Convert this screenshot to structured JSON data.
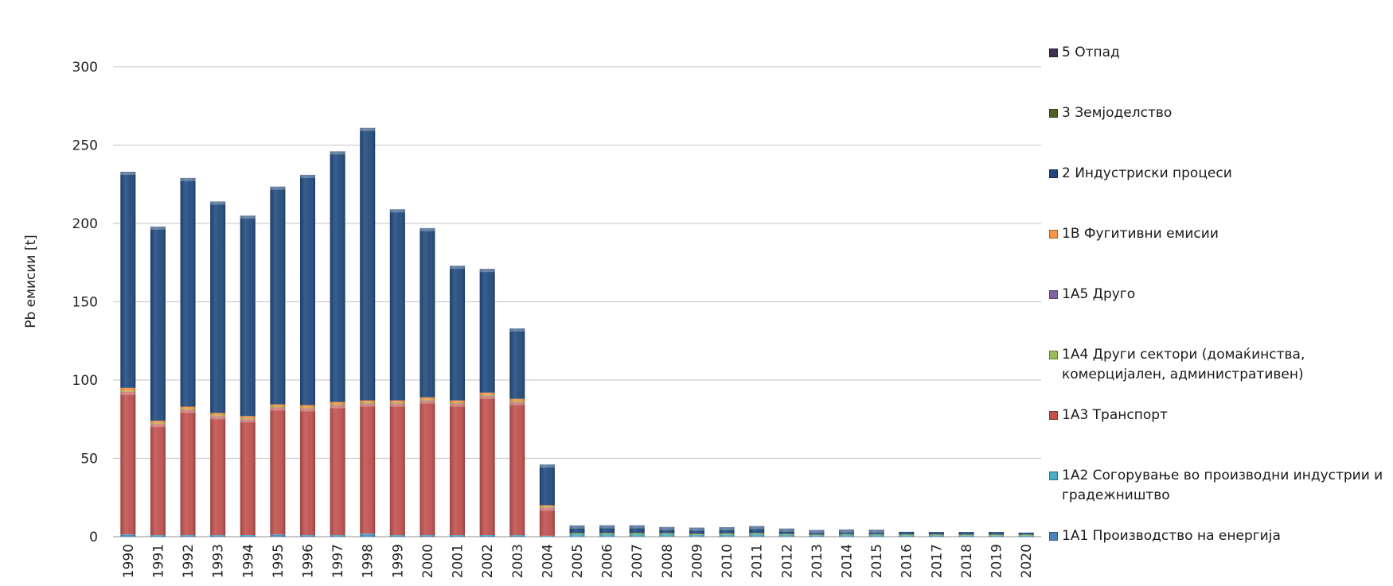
{
  "chart_data": {
    "type": "bar",
    "stacked": true,
    "title": "",
    "xlabel": "",
    "ylabel": "Pb емисии [t]",
    "ylim": [
      0,
      300
    ],
    "yticks": [
      0,
      50,
      100,
      150,
      200,
      250,
      300
    ],
    "grid": true,
    "legend_position": "right",
    "categories": [
      "1990",
      "1991",
      "1992",
      "1993",
      "1994",
      "1995",
      "1996",
      "1997",
      "1998",
      "1999",
      "2000",
      "2001",
      "2002",
      "2003",
      "2004",
      "2005",
      "2006",
      "2007",
      "2008",
      "2009",
      "2010",
      "2011",
      "2012",
      "2013",
      "2014",
      "2015",
      "2016",
      "2017",
      "2018",
      "2019",
      "2020"
    ],
    "series": [
      {
        "name": "1A1 Производство на енергија",
        "color": "#4f81bd",
        "values": [
          1,
          0.5,
          0.5,
          0.5,
          0.5,
          1,
          0.5,
          0.5,
          1,
          0.5,
          0.5,
          0.5,
          0.5,
          0.5,
          0.3,
          0.3,
          0.3,
          0.3,
          0.3,
          0.3,
          0.3,
          0.3,
          0.3,
          0.2,
          0.2,
          0.2,
          0.2,
          0.2,
          0.2,
          0.2,
          0.2
        ]
      },
      {
        "name": "1A2 Согорување во производни индустрии и градежништво",
        "color": "#4bacc6",
        "values": [
          0.5,
          0.5,
          0.5,
          0.5,
          0.5,
          0.5,
          0.5,
          0.5,
          1,
          0.5,
          0.5,
          0.5,
          0.5,
          0.5,
          0.3,
          1.2,
          1.2,
          1.2,
          1.2,
          0.8,
          1,
          1.2,
          0.8,
          0.6,
          0.8,
          0.8,
          0.6,
          0.6,
          0.5,
          0.5,
          0.5
        ]
      },
      {
        "name": "1A3 Транспорт",
        "color": "#c0504d",
        "values": [
          91,
          71,
          80,
          76,
          74,
          81,
          81,
          83,
          83,
          84,
          86,
          84,
          89,
          85,
          18,
          0,
          0,
          0,
          0,
          0,
          0,
          0,
          0,
          0,
          0,
          0,
          0,
          0,
          0,
          0,
          0
        ]
      },
      {
        "name": "1A4 Други сектори (домаќинства, комерцијален, административен)",
        "color": "#9bbb59",
        "values": [
          0.5,
          0.5,
          0.5,
          0.5,
          0.5,
          0.5,
          0.5,
          0.5,
          0.5,
          0.5,
          0.5,
          0.5,
          0.5,
          0.5,
          0.5,
          0.7,
          0.8,
          0.8,
          0.7,
          0.7,
          0.8,
          0.8,
          0.6,
          0.5,
          0.6,
          0.5,
          0.6,
          0.6,
          0.6,
          0.6,
          0.6
        ]
      },
      {
        "name": "1A5 Друго",
        "color": "#8064a2",
        "values": [
          0,
          0,
          0,
          0,
          0,
          0,
          0,
          0,
          0,
          0,
          0,
          0,
          0,
          0,
          0,
          0,
          0,
          0,
          0,
          0,
          0,
          0,
          0,
          0,
          0,
          0,
          0,
          0,
          0,
          0,
          0
        ]
      },
      {
        "name": "1B Фугитивни емисии",
        "color": "#f79646",
        "values": [
          2,
          1.5,
          1.5,
          1.5,
          1.5,
          1.5,
          1.5,
          1.5,
          1.5,
          1.5,
          1.5,
          1.5,
          1.5,
          1.5,
          1,
          0,
          0,
          0,
          0,
          0,
          0,
          0,
          0,
          0,
          0,
          0,
          0,
          0,
          0,
          0,
          0
        ]
      },
      {
        "name": "2 Индустриски процеси",
        "color": "#1f497d",
        "values": [
          138,
          124,
          146,
          135,
          128,
          139,
          147,
          160,
          174,
          122,
          108,
          86,
          79,
          45,
          26,
          5,
          5,
          5,
          4,
          4,
          4,
          4.5,
          3.5,
          3,
          3,
          3,
          1.7,
          1.6,
          1.7,
          1.7,
          1.3
        ]
      },
      {
        "name": "3 Земјоделство",
        "color": "#4f6228",
        "values": [
          0,
          0,
          0,
          0,
          0,
          0,
          0,
          0,
          0,
          0,
          0,
          0,
          0,
          0,
          0,
          0,
          0,
          0,
          0,
          0,
          0,
          0,
          0,
          0,
          0,
          0,
          0,
          0,
          0,
          0,
          0
        ]
      },
      {
        "name": "5 Отпад",
        "color": "#403152",
        "values": [
          0,
          0,
          0,
          0,
          0,
          0,
          0,
          0,
          0,
          0,
          0,
          0,
          0,
          0,
          0,
          0,
          0,
          0,
          0,
          0,
          0,
          0,
          0,
          0,
          0,
          0,
          0,
          0,
          0,
          0,
          0
        ]
      }
    ]
  }
}
